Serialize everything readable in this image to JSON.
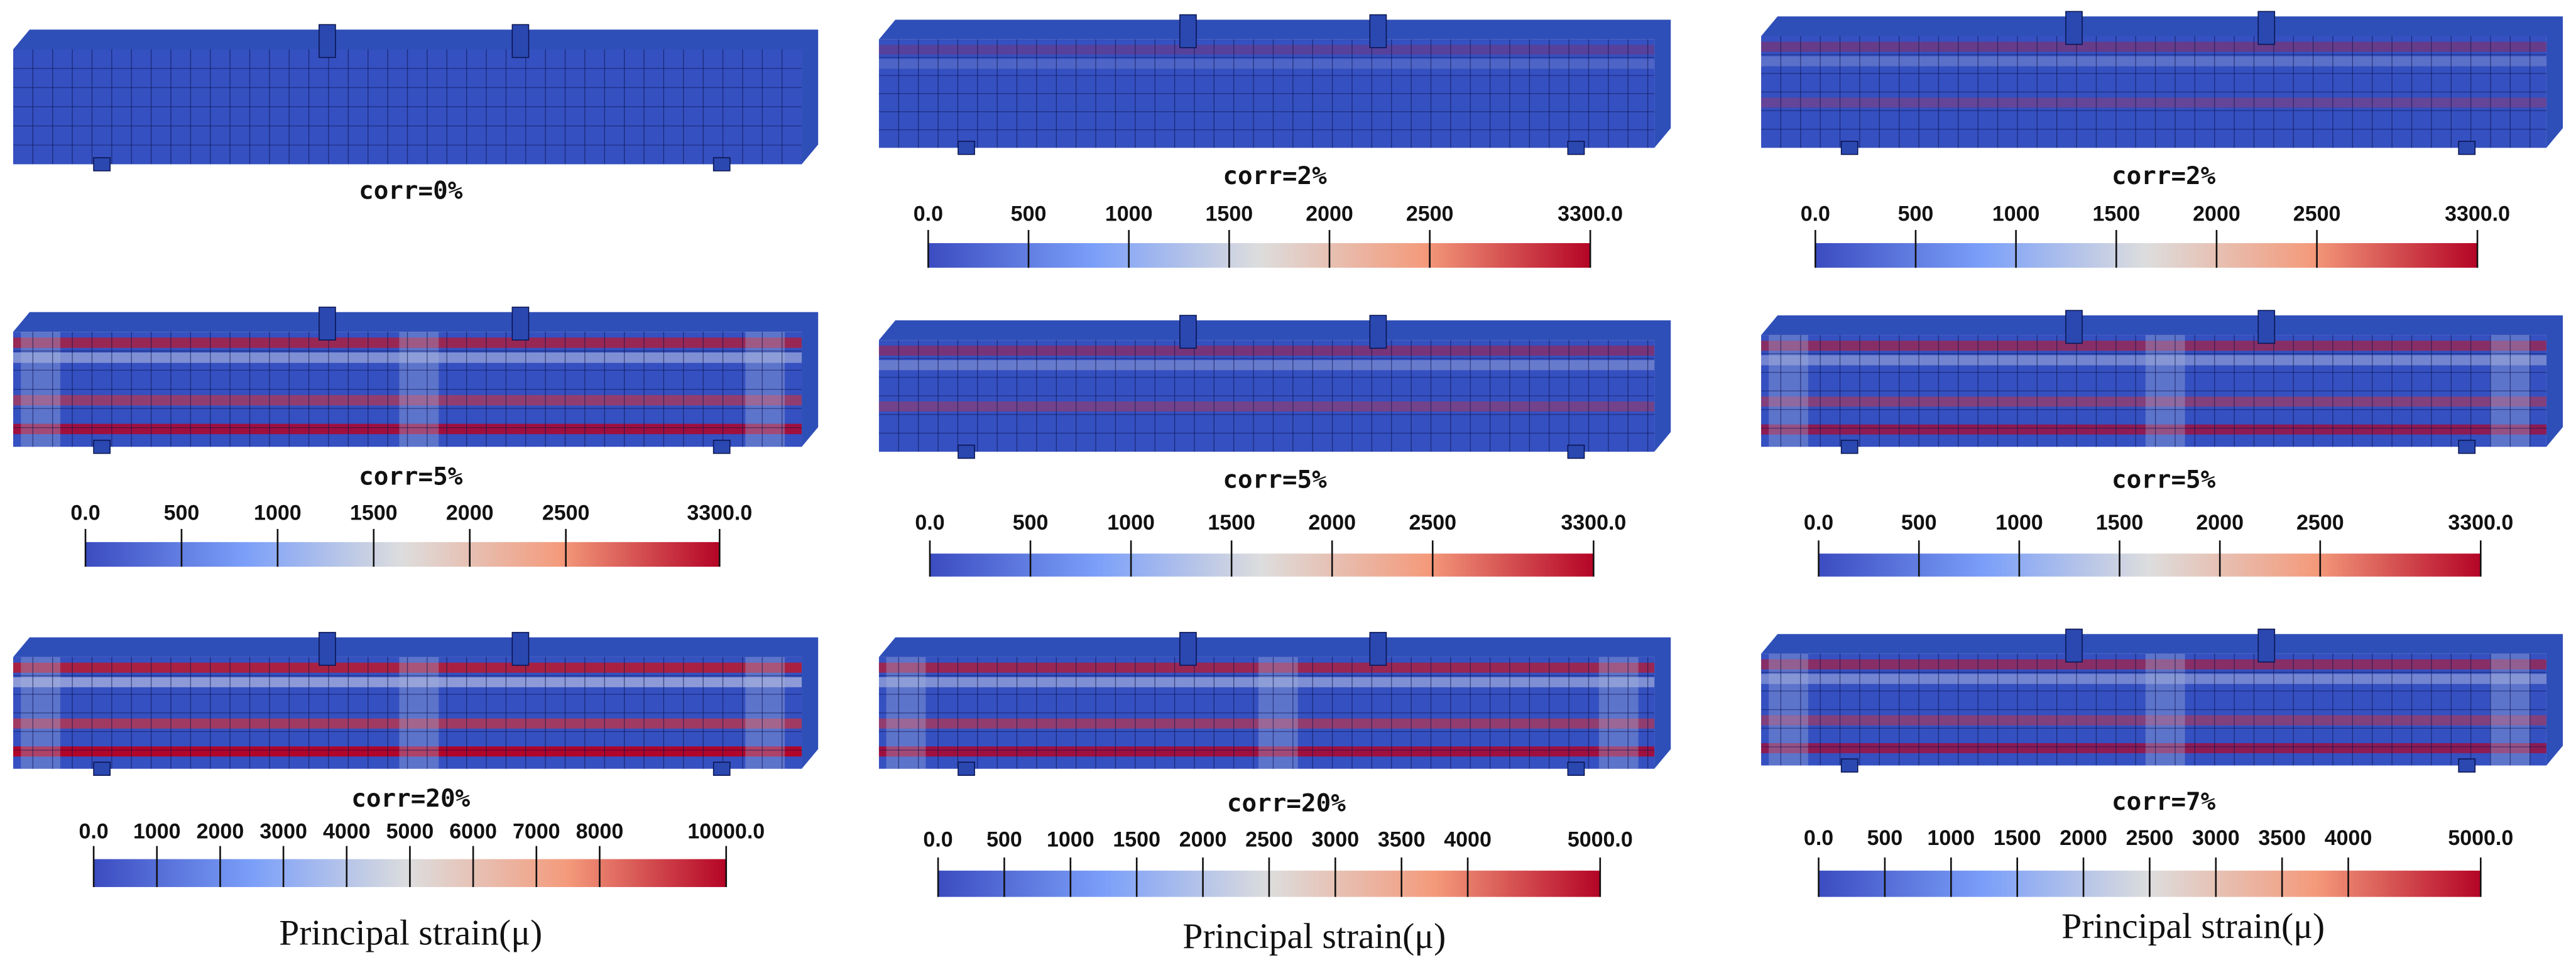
{
  "panels": [
    {
      "caption": "corr=0%"
    },
    {
      "caption": "corr=2%",
      "colorbar": {
        "lim": [
          0,
          3300
        ],
        "ticks": [
          {
            "value": 0,
            "label": "0.0"
          },
          500,
          1000,
          1500,
          2000,
          2500,
          {
            "value": 3300,
            "label": "3300.0"
          }
        ]
      }
    },
    {
      "caption": "corr=2%",
      "colorbar": {
        "lim": [
          0,
          3300
        ],
        "ticks": [
          {
            "value": 0,
            "label": "0.0"
          },
          500,
          1000,
          1500,
          2000,
          2500,
          {
            "value": 3300,
            "label": "3300.0"
          }
        ]
      }
    },
    {
      "caption": "corr=5%",
      "colorbar": {
        "lim": [
          0,
          3300
        ],
        "ticks": [
          {
            "value": 0,
            "label": "0.0"
          },
          500,
          1000,
          1500,
          2000,
          2500,
          {
            "value": 3300,
            "label": "3300.0"
          }
        ]
      }
    },
    {
      "caption": "corr=5%",
      "colorbar": {
        "lim": [
          0,
          3300
        ],
        "ticks": [
          {
            "value": 0,
            "label": "0.0"
          },
          500,
          1000,
          1500,
          2000,
          2500,
          {
            "value": 3300,
            "label": "3300.0"
          }
        ]
      }
    },
    {
      "caption": "corr=5%",
      "colorbar": {
        "lim": [
          0,
          3300
        ],
        "ticks": [
          {
            "value": 0,
            "label": "0.0"
          },
          500,
          1000,
          1500,
          2000,
          2500,
          {
            "value": 3300,
            "label": "3300.0"
          }
        ]
      }
    },
    {
      "caption": "corr=20%",
      "colorbar": {
        "lim": [
          0,
          10000
        ],
        "ticks": [
          {
            "value": 0,
            "label": "0.0"
          },
          1000,
          2000,
          3000,
          4000,
          5000,
          6000,
          7000,
          8000,
          {
            "value": 10000,
            "label": "10000.0"
          }
        ]
      },
      "axis_title": "Principal strain(μ)"
    },
    {
      "caption": "corr=20%",
      "colorbar": {
        "lim": [
          0,
          5000
        ],
        "ticks": [
          {
            "value": 0,
            "label": "0.0"
          },
          500,
          1000,
          1500,
          2000,
          2500,
          3000,
          3500,
          4000,
          {
            "value": 5000,
            "label": "5000.0"
          }
        ]
      },
      "axis_title": "Principal strain(μ)"
    },
    {
      "caption": "corr=7%",
      "colorbar": {
        "lim": [
          0,
          5000
        ],
        "ticks": [
          {
            "value": 0,
            "label": "0.0"
          },
          500,
          1000,
          1500,
          2000,
          2500,
          3000,
          3500,
          4000,
          {
            "value": 5000,
            "label": "5000.0"
          }
        ]
      },
      "axis_title": "Principal strain(μ)"
    }
  ]
}
